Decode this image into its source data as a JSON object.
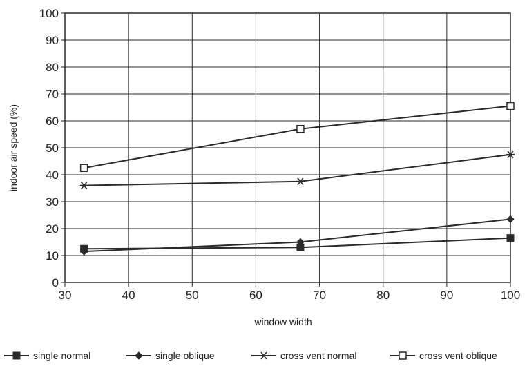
{
  "chart_data": {
    "type": "line",
    "xlabel": "window width",
    "ylabel": "indoor air speed (%)",
    "xlim": [
      30,
      100
    ],
    "ylim": [
      0,
      100
    ],
    "xticks": [
      30,
      40,
      50,
      60,
      70,
      80,
      90,
      100
    ],
    "yticks": [
      0,
      10,
      20,
      30,
      40,
      50,
      60,
      70,
      80,
      90,
      100
    ],
    "grid": true,
    "legend_position": "bottom",
    "x": [
      33,
      67,
      100
    ],
    "series": [
      {
        "name": "single normal",
        "marker": "filled-square",
        "values": [
          12.5,
          13,
          16.5
        ]
      },
      {
        "name": "single oblique",
        "marker": "filled-diamond",
        "values": [
          11.5,
          15,
          23.5
        ]
      },
      {
        "name": "cross vent normal",
        "marker": "asterisk",
        "values": [
          36,
          37.5,
          47.5
        ]
      },
      {
        "name": "cross vent oblique",
        "marker": "open-square",
        "values": [
          42.5,
          57,
          65.5
        ]
      }
    ],
    "line_color": "#2a2a2a"
  }
}
